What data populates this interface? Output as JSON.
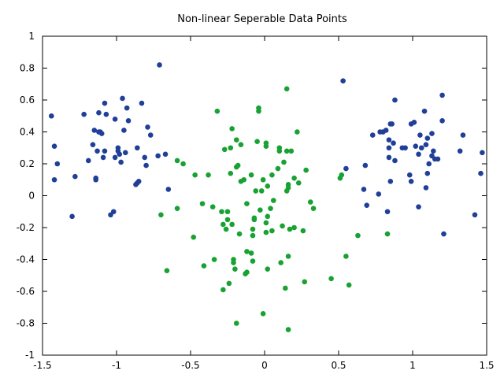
{
  "chart_data": {
    "type": "scatter",
    "title": "Non-linear Seperable Data Points",
    "xlabel": "",
    "ylabel": "",
    "xlim": [
      -1.5,
      1.5
    ],
    "ylim": [
      -1,
      1
    ],
    "grid": false,
    "legend": "none",
    "x_ticks": [
      "-1.5",
      "-1",
      "-0.5",
      "0",
      "0.5",
      "1",
      "1.5"
    ],
    "y_ticks": [
      "-1",
      "-0.8",
      "-0.6",
      "-0.4",
      "-0.2",
      "0",
      "0.2",
      "0.4",
      "0.6",
      "0.8",
      "1"
    ],
    "series": [
      {
        "color": "#1f3f99",
        "points": [
          [
            -1.44,
            0.5
          ],
          [
            -1.42,
            0.31
          ],
          [
            -1.42,
            0.1
          ],
          [
            -1.4,
            0.2
          ],
          [
            -1.3,
            -0.13
          ],
          [
            -1.28,
            0.12
          ],
          [
            -1.22,
            0.51
          ],
          [
            -1.19,
            0.22
          ],
          [
            -1.16,
            0.32
          ],
          [
            -1.15,
            0.41
          ],
          [
            -1.14,
            0.1
          ],
          [
            -1.14,
            0.11
          ],
          [
            -1.13,
            0.28
          ],
          [
            -1.12,
            0.52
          ],
          [
            -1.12,
            0.4
          ],
          [
            -1.11,
            0.4
          ],
          [
            -1.1,
            0.39
          ],
          [
            -1.09,
            0.24
          ],
          [
            -1.08,
            0.58
          ],
          [
            -1.08,
            0.28
          ],
          [
            -1.07,
            0.51
          ],
          [
            -1.04,
            -0.12
          ],
          [
            -1.02,
            -0.1
          ],
          [
            -1.01,
            0.48
          ],
          [
            -1.01,
            0.24
          ],
          [
            -0.99,
            0.3
          ],
          [
            -0.99,
            0.28
          ],
          [
            -0.98,
            0.26
          ],
          [
            -0.97,
            0.21
          ],
          [
            -0.96,
            0.61
          ],
          [
            -0.95,
            0.41
          ],
          [
            -0.94,
            0.27
          ],
          [
            -0.93,
            0.55
          ],
          [
            -0.92,
            0.47
          ],
          [
            -0.87,
            0.07
          ],
          [
            -0.86,
            0.08
          ],
          [
            -0.86,
            0.3
          ],
          [
            -0.85,
            0.09
          ],
          [
            -0.83,
            0.58
          ],
          [
            -0.81,
            0.24
          ],
          [
            -0.8,
            0.19
          ],
          [
            -0.79,
            0.43
          ],
          [
            -0.77,
            0.38
          ],
          [
            -0.72,
            0.25
          ],
          [
            -0.71,
            0.82
          ],
          [
            -0.67,
            0.26
          ],
          [
            -0.65,
            0.04
          ],
          [
            0.53,
            0.72
          ],
          [
            0.55,
            0.17
          ],
          [
            0.67,
            0.04
          ],
          [
            0.68,
            0.19
          ],
          [
            0.69,
            -0.06
          ],
          [
            0.73,
            0.38
          ],
          [
            0.77,
            0.01
          ],
          [
            0.78,
            0.4
          ],
          [
            0.8,
            0.4
          ],
          [
            0.82,
            0.41
          ],
          [
            0.83,
            -0.1
          ],
          [
            0.84,
            0.35
          ],
          [
            0.84,
            0.3
          ],
          [
            0.84,
            0.24
          ],
          [
            0.85,
            0.45
          ],
          [
            0.85,
            0.09
          ],
          [
            0.86,
            0.45
          ],
          [
            0.87,
            0.33
          ],
          [
            0.88,
            0.6
          ],
          [
            0.88,
            0.22
          ],
          [
            0.93,
            0.3
          ],
          [
            0.95,
            0.3
          ],
          [
            0.98,
            0.13
          ],
          [
            0.99,
            0.45
          ],
          [
            0.99,
            0.09
          ],
          [
            1.01,
            0.46
          ],
          [
            1.02,
            0.31
          ],
          [
            1.04,
            -0.07
          ],
          [
            1.04,
            0.26
          ],
          [
            1.05,
            0.38
          ],
          [
            1.06,
            0.3
          ],
          [
            1.08,
            0.53
          ],
          [
            1.09,
            0.32
          ],
          [
            1.09,
            0.05
          ],
          [
            1.1,
            0.36
          ],
          [
            1.1,
            0.14
          ],
          [
            1.11,
            0.2
          ],
          [
            1.13,
            0.39
          ],
          [
            1.13,
            0.25
          ],
          [
            1.14,
            0.28
          ],
          [
            1.15,
            0.23
          ],
          [
            1.17,
            0.23
          ],
          [
            1.2,
            0.63
          ],
          [
            1.2,
            0.47
          ],
          [
            1.21,
            -0.24
          ],
          [
            1.32,
            0.28
          ],
          [
            1.34,
            0.38
          ],
          [
            1.42,
            -0.12
          ],
          [
            1.46,
            0.14
          ],
          [
            1.47,
            0.27
          ]
        ]
      },
      {
        "color": "#17a232",
        "points": [
          [
            -0.7,
            -0.12
          ],
          [
            -0.66,
            -0.47
          ],
          [
            -0.59,
            -0.08
          ],
          [
            -0.59,
            0.22
          ],
          [
            -0.55,
            0.2
          ],
          [
            -0.48,
            -0.26
          ],
          [
            -0.47,
            0.13
          ],
          [
            -0.42,
            -0.05
          ],
          [
            -0.41,
            -0.44
          ],
          [
            -0.38,
            0.13
          ],
          [
            -0.35,
            -0.07
          ],
          [
            -0.34,
            -0.4
          ],
          [
            -0.32,
            0.53
          ],
          [
            -0.29,
            -0.1
          ],
          [
            -0.28,
            -0.18
          ],
          [
            -0.28,
            -0.59
          ],
          [
            -0.27,
            0.29
          ],
          [
            -0.26,
            -0.21
          ],
          [
            -0.25,
            -0.15
          ],
          [
            -0.25,
            -0.1
          ],
          [
            -0.24,
            -0.55
          ],
          [
            -0.23,
            0.3
          ],
          [
            -0.23,
            0.14
          ],
          [
            -0.22,
            0.42
          ],
          [
            -0.22,
            -0.18
          ],
          [
            -0.21,
            -0.4
          ],
          [
            -0.21,
            -0.42
          ],
          [
            -0.2,
            -0.46
          ],
          [
            -0.19,
            -0.8
          ],
          [
            -0.19,
            0.18
          ],
          [
            -0.19,
            0.35
          ],
          [
            -0.18,
            0.19
          ],
          [
            -0.17,
            -0.24
          ],
          [
            -0.16,
            0.09
          ],
          [
            -0.16,
            0.32
          ],
          [
            -0.14,
            0.1
          ],
          [
            -0.13,
            -0.49
          ],
          [
            -0.12,
            -0.48
          ],
          [
            -0.12,
            -0.05
          ],
          [
            -0.12,
            -0.35
          ],
          [
            -0.09,
            -0.36
          ],
          [
            -0.09,
            0.13
          ],
          [
            -0.08,
            -0.21
          ],
          [
            -0.08,
            -0.25
          ],
          [
            -0.08,
            -0.41
          ],
          [
            -0.07,
            -0.15
          ],
          [
            -0.07,
            -0.14
          ],
          [
            -0.06,
            0.03
          ],
          [
            -0.05,
            0.34
          ],
          [
            -0.04,
            0.53
          ],
          [
            -0.04,
            0.55
          ],
          [
            -0.03,
            -0.09
          ],
          [
            -0.02,
            0.03
          ],
          [
            -0.01,
            0.1
          ],
          [
            -0.01,
            -0.74
          ],
          [
            0.01,
            -0.17
          ],
          [
            0.01,
            -0.23
          ],
          [
            0.01,
            0.33
          ],
          [
            0.01,
            0.31
          ],
          [
            0.02,
            0.06
          ],
          [
            0.02,
            -0.13
          ],
          [
            0.02,
            -0.46
          ],
          [
            0.04,
            -0.08
          ],
          [
            0.05,
            -0.22
          ],
          [
            0.05,
            0.13
          ],
          [
            0.06,
            -0.03
          ],
          [
            0.09,
            0.17
          ],
          [
            0.1,
            0.3
          ],
          [
            0.1,
            0.28
          ],
          [
            0.11,
            -0.42
          ],
          [
            0.12,
            -0.19
          ],
          [
            0.13,
            0.21
          ],
          [
            0.14,
            -0.58
          ],
          [
            0.15,
            0.67
          ],
          [
            0.15,
            0.03
          ],
          [
            0.15,
            0.28
          ],
          [
            0.16,
            -0.38
          ],
          [
            0.16,
            0.07
          ],
          [
            0.16,
            -0.84
          ],
          [
            0.16,
            0.05
          ],
          [
            0.17,
            -0.21
          ],
          [
            0.18,
            0.28
          ],
          [
            0.2,
            -0.2
          ],
          [
            0.2,
            0.11
          ],
          [
            0.22,
            0.4
          ],
          [
            0.23,
            0.08
          ],
          [
            0.26,
            -0.22
          ],
          [
            0.27,
            -0.54
          ],
          [
            0.28,
            0.16
          ],
          [
            0.31,
            -0.04
          ],
          [
            0.33,
            -0.08
          ],
          [
            0.45,
            -0.52
          ],
          [
            0.51,
            0.11
          ],
          [
            0.52,
            0.13
          ],
          [
            0.55,
            -0.38
          ],
          [
            0.57,
            -0.56
          ],
          [
            0.63,
            -0.25
          ],
          [
            0.83,
            -0.24
          ]
        ]
      }
    ]
  }
}
